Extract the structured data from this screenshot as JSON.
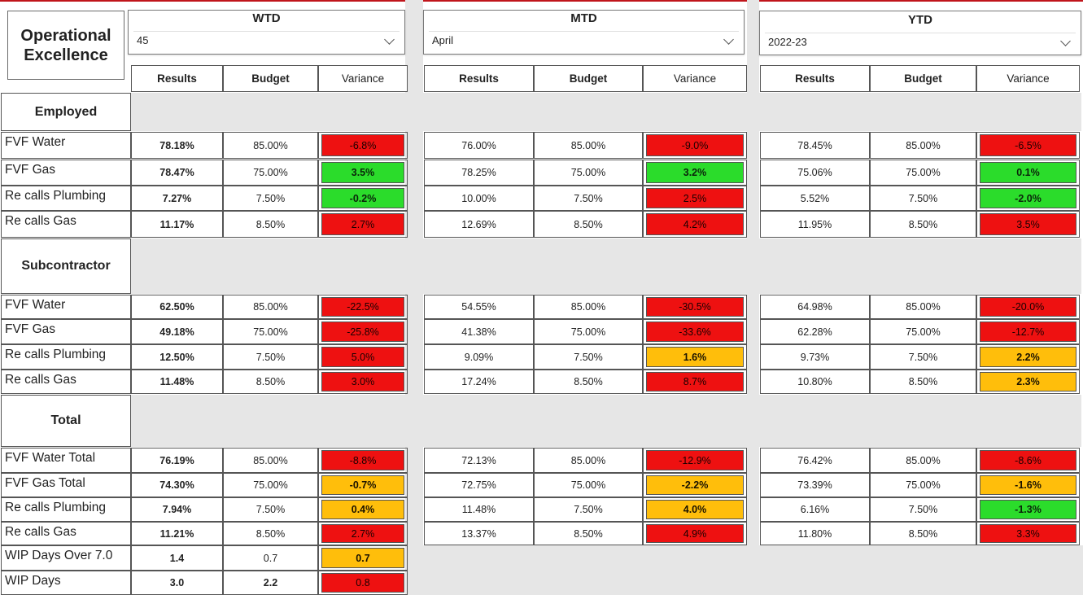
{
  "title": "Operational Excellence",
  "colors": {
    "red": "#ee1111",
    "green": "#2bdc2b",
    "amber": "#ffbe0b",
    "band": "#e6e6e6",
    "accent": "#c0151b"
  },
  "periods": [
    {
      "name": "WTD",
      "selected": "45"
    },
    {
      "name": "MTD",
      "selected": "April"
    },
    {
      "name": "YTD",
      "selected": "2022-23"
    }
  ],
  "headers": {
    "results": "Results",
    "budget": "Budget",
    "variance": "Variance"
  },
  "sections": [
    {
      "name": "Employed",
      "rows": [
        {
          "label": "FVF Water",
          "wtd": [
            "78.18%",
            "85.00%",
            "-6.8%"
          ],
          "mtd": [
            "76.00%",
            "85.00%",
            "-9.0%"
          ],
          "ytd": [
            "78.45%",
            "85.00%",
            "-6.5%"
          ],
          "status": [
            "red",
            "red",
            "red"
          ]
        },
        {
          "label": "FVF Gas",
          "wtd": [
            "78.47%",
            "75.00%",
            "3.5%"
          ],
          "mtd": [
            "78.25%",
            "75.00%",
            "3.2%"
          ],
          "ytd": [
            "75.06%",
            "75.00%",
            "0.1%"
          ],
          "status": [
            "green",
            "green",
            "green"
          ]
        },
        {
          "label": "Re calls Plumbing",
          "wtd": [
            "7.27%",
            "7.50%",
            "-0.2%"
          ],
          "mtd": [
            "10.00%",
            "7.50%",
            "2.5%"
          ],
          "ytd": [
            "5.52%",
            "7.50%",
            "-2.0%"
          ],
          "status": [
            "green",
            "red",
            "green"
          ]
        },
        {
          "label": "Re calls Gas",
          "wtd": [
            "11.17%",
            "8.50%",
            "2.7%"
          ],
          "mtd": [
            "12.69%",
            "8.50%",
            "4.2%"
          ],
          "ytd": [
            "11.95%",
            "8.50%",
            "3.5%"
          ],
          "status": [
            "red",
            "red",
            "red"
          ]
        }
      ]
    },
    {
      "name": "Subcontractor",
      "rows": [
        {
          "label": "FVF Water",
          "wtd": [
            "62.50%",
            "85.00%",
            "-22.5%"
          ],
          "mtd": [
            "54.55%",
            "85.00%",
            "-30.5%"
          ],
          "ytd": [
            "64.98%",
            "85.00%",
            "-20.0%"
          ],
          "status": [
            "red",
            "red",
            "red"
          ]
        },
        {
          "label": "FVF Gas",
          "wtd": [
            "49.18%",
            "75.00%",
            "-25.8%"
          ],
          "mtd": [
            "41.38%",
            "75.00%",
            "-33.6%"
          ],
          "ytd": [
            "62.28%",
            "75.00%",
            "-12.7%"
          ],
          "status": [
            "red",
            "red",
            "red"
          ]
        },
        {
          "label": "Re calls Plumbing",
          "wtd": [
            "12.50%",
            "7.50%",
            "5.0%"
          ],
          "mtd": [
            "9.09%",
            "7.50%",
            "1.6%"
          ],
          "ytd": [
            "9.73%",
            "7.50%",
            "2.2%"
          ],
          "status": [
            "red",
            "amber",
            "amber"
          ]
        },
        {
          "label": "Re calls Gas",
          "wtd": [
            "11.48%",
            "8.50%",
            "3.0%"
          ],
          "mtd": [
            "17.24%",
            "8.50%",
            "8.7%"
          ],
          "ytd": [
            "10.80%",
            "8.50%",
            "2.3%"
          ],
          "status": [
            "red",
            "red",
            "amber"
          ]
        }
      ]
    },
    {
      "name": "Total",
      "rows": [
        {
          "label": "FVF Water Total",
          "wtd": [
            "76.19%",
            "85.00%",
            "-8.8%"
          ],
          "mtd": [
            "72.13%",
            "85.00%",
            "-12.9%"
          ],
          "ytd": [
            "76.42%",
            "85.00%",
            "-8.6%"
          ],
          "status": [
            "red",
            "red",
            "red"
          ]
        },
        {
          "label": "FVF Gas Total",
          "wtd": [
            "74.30%",
            "75.00%",
            "-0.7%"
          ],
          "mtd": [
            "72.75%",
            "75.00%",
            "-2.2%"
          ],
          "ytd": [
            "73.39%",
            "75.00%",
            "-1.6%"
          ],
          "status": [
            "amber",
            "amber",
            "amber"
          ]
        },
        {
          "label": "Re calls Plumbing",
          "wtd": [
            "7.94%",
            "7.50%",
            "0.4%"
          ],
          "mtd": [
            "11.48%",
            "7.50%",
            "4.0%"
          ],
          "ytd": [
            "6.16%",
            "7.50%",
            "-1.3%"
          ],
          "status": [
            "amber",
            "amber",
            "green"
          ]
        },
        {
          "label": "Re calls Gas",
          "wtd": [
            "11.21%",
            "8.50%",
            "2.7%"
          ],
          "mtd": [
            "13.37%",
            "8.50%",
            "4.9%"
          ],
          "ytd": [
            "11.80%",
            "8.50%",
            "3.3%"
          ],
          "status": [
            "red",
            "red",
            "red"
          ]
        },
        {
          "label": "WIP Days Over 7.0",
          "wtd": [
            "1.4",
            "0.7",
            "0.7"
          ],
          "status": [
            "amber"
          ]
        },
        {
          "label": "WIP Days",
          "wtd": [
            "3.0",
            "2.2",
            "0.8"
          ],
          "status": [
            "red"
          ]
        }
      ]
    }
  ]
}
